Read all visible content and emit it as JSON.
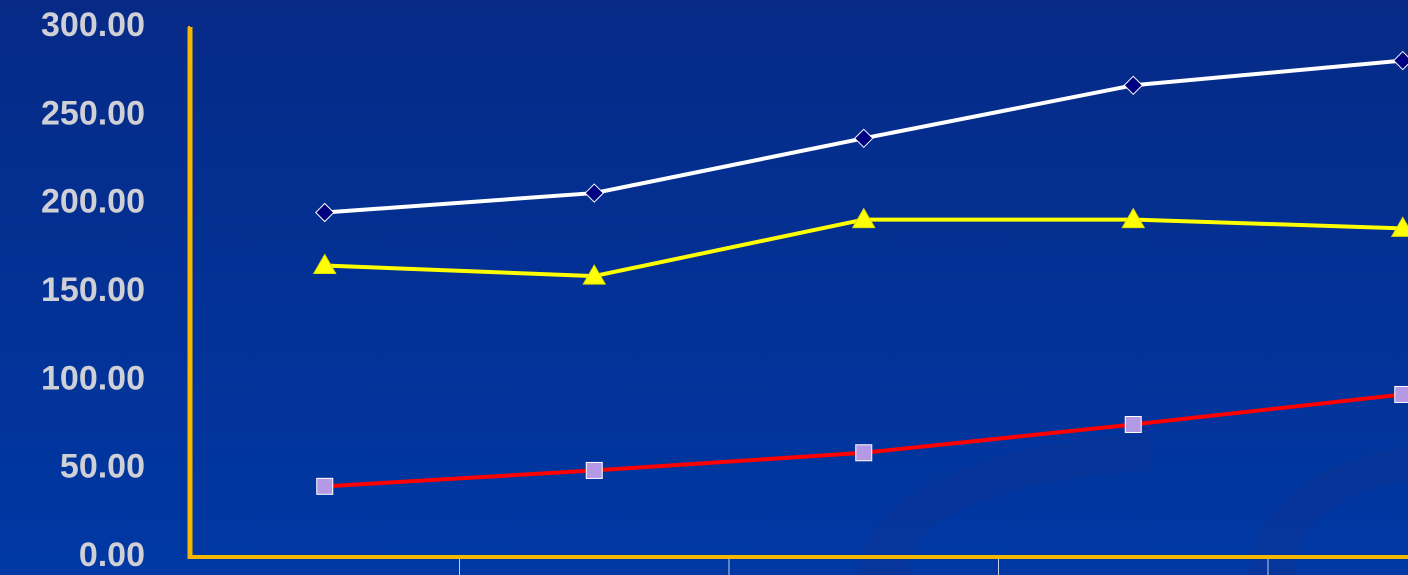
{
  "chart_data": {
    "type": "line",
    "categories": [
      null,
      null,
      null,
      null,
      null
    ],
    "series": [
      {
        "color": "#ffffff",
        "marker": "diamond",
        "marker_color": "#000080",
        "values": [
          195,
          206,
          237,
          267,
          281
        ]
      },
      {
        "color": "#ffff00",
        "marker": "triangle",
        "marker_color": "#ffff00",
        "values": [
          165,
          159,
          191,
          191,
          186
        ]
      },
      {
        "color": "#ff0000",
        "marker": "square",
        "marker_color": "#b49ae6",
        "values": [
          40,
          49,
          59,
          75,
          92
        ]
      }
    ],
    "ylim": [
      0,
      300
    ],
    "yticks": [
      {
        "value": 0,
        "label": "0.00"
      },
      {
        "value": 50,
        "label": "50.00"
      },
      {
        "value": 100,
        "label": "100.00"
      },
      {
        "value": 150,
        "label": "150.00"
      },
      {
        "value": 200,
        "label": "200.00"
      },
      {
        "value": 250,
        "label": "250.00"
      },
      {
        "value": 300,
        "label": "300.00"
      }
    ],
    "axis_color": "#f5b800"
  }
}
